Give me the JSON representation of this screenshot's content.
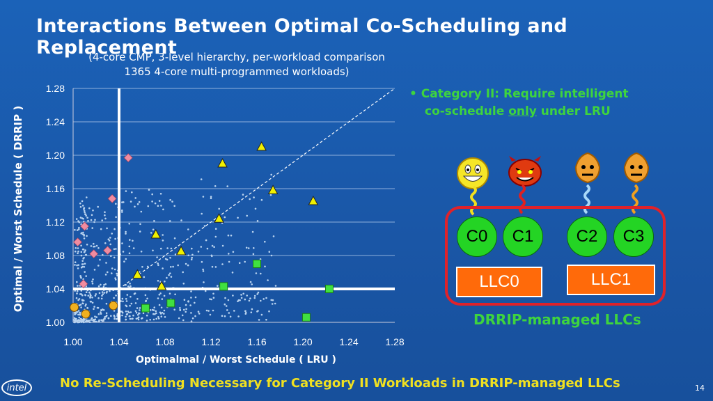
{
  "slide": {
    "title": "Interactions Between Optimal Co-Scheduling and Replacement",
    "subtitle_line1": "(4-core CMP, 3-level hierarchy, per-workload comparison",
    "subtitle_line2": "1365 4-core multi-programmed workloads)",
    "bullet_part1": "Category II:  Require intelligent",
    "bullet_part2": "co-schedule ",
    "bullet_part3": "only",
    "bullet_part4": " under LRU",
    "cores": [
      "C0",
      "C1",
      "C2",
      "C3"
    ],
    "llcs": [
      "LLC0",
      "LLC1"
    ],
    "llc_caption": "DRRIP-managed LLCs",
    "footer": "No Re-Scheduling Necessary for Category II Workloads in DRRIP-managed LLCs",
    "logo_text": "intel",
    "page_number": "14",
    "colors": {
      "background": "#1a5cb0",
      "accent_green": "#3ed43e",
      "footer_yellow": "#f0e020",
      "core_green": "#24d424",
      "llc_orange": "#ff6a0a",
      "border_red": "#e0222a"
    },
    "icons": [
      "smiley-face-icon",
      "devil-face-icon",
      "neutral-face-icon",
      "neutral-face-icon"
    ]
  },
  "chart_data": {
    "type": "scatter",
    "title": "",
    "xlabel": "Optimalmal / Worst Schedule ( LRU )",
    "ylabel": "Optimal / Worst Schedule ( DRRIP )",
    "xlim": [
      1.0,
      1.28
    ],
    "ylim": [
      1.0,
      1.28
    ],
    "xticks": [
      "1.00",
      "1.04",
      "1.08",
      "1.12",
      "1.16",
      "1.20",
      "1.24",
      "1.28"
    ],
    "yticks": [
      "1.00",
      "1.04",
      "1.08",
      "1.12",
      "1.16",
      "1.20",
      "1.24",
      "1.28"
    ],
    "grid": "horizontal",
    "reference_lines": {
      "x": 1.04,
      "y": 1.04,
      "diagonal": true
    },
    "background_points_count_approx": 1365,
    "series": [
      {
        "marker": "diamond",
        "color": "#f08ca0",
        "x": [
          1.048,
          1.034,
          1.01,
          1.004,
          1.018,
          1.03,
          1.009
        ],
        "y": [
          1.197,
          1.148,
          1.115,
          1.096,
          1.082,
          1.086,
          1.046
        ]
      },
      {
        "marker": "triangle",
        "color": "#f0f000",
        "x": [
          1.164,
          1.13,
          1.174,
          1.209,
          1.127,
          1.072,
          1.094,
          1.056,
          1.077
        ],
        "y": [
          1.21,
          1.19,
          1.158,
          1.145,
          1.124,
          1.105,
          1.085,
          1.057,
          1.043
        ]
      },
      {
        "marker": "square",
        "color": "#40e040",
        "x": [
          1.16,
          1.131,
          1.223,
          1.085,
          1.063,
          1.203
        ],
        "y": [
          1.07,
          1.043,
          1.04,
          1.023,
          1.017,
          1.006
        ]
      },
      {
        "marker": "circle",
        "color": "#f0b020",
        "x": [
          1.001,
          1.011,
          1.035
        ],
        "y": [
          1.018,
          1.01,
          1.02
        ]
      }
    ]
  }
}
